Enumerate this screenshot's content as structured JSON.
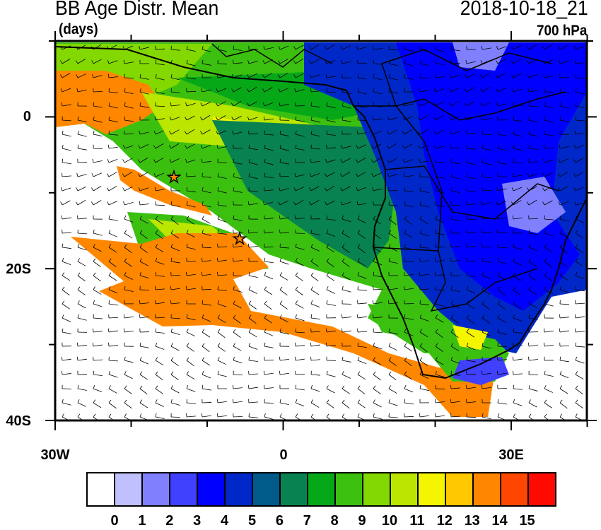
{
  "title": "BB Age Distr. Mean",
  "units": "(days)",
  "datetime": "2018-10-18_21",
  "level": "700 hPa",
  "axes": {
    "x_labels": [
      "30W",
      "0",
      "30E"
    ],
    "y_labels": [
      "0",
      "20S",
      "40S"
    ]
  },
  "colorbar": {
    "labels": [
      "0",
      "1",
      "2",
      "3",
      "4",
      "5",
      "6",
      "7",
      "8",
      "9",
      "10",
      "11",
      "12",
      "13",
      "14",
      "15"
    ],
    "colors": [
      "#ffffff",
      "#c0c0ff",
      "#8080ff",
      "#4040ff",
      "#0000ff",
      "#0028c8",
      "#005a8a",
      "#088250",
      "#06a818",
      "#3cc010",
      "#82d800",
      "#bae600",
      "#f5f500",
      "#ffc800",
      "#ff8700",
      "#ff4600",
      "#ff0a00"
    ]
  },
  "markers": [
    "star-icon",
    "star-icon"
  ]
}
